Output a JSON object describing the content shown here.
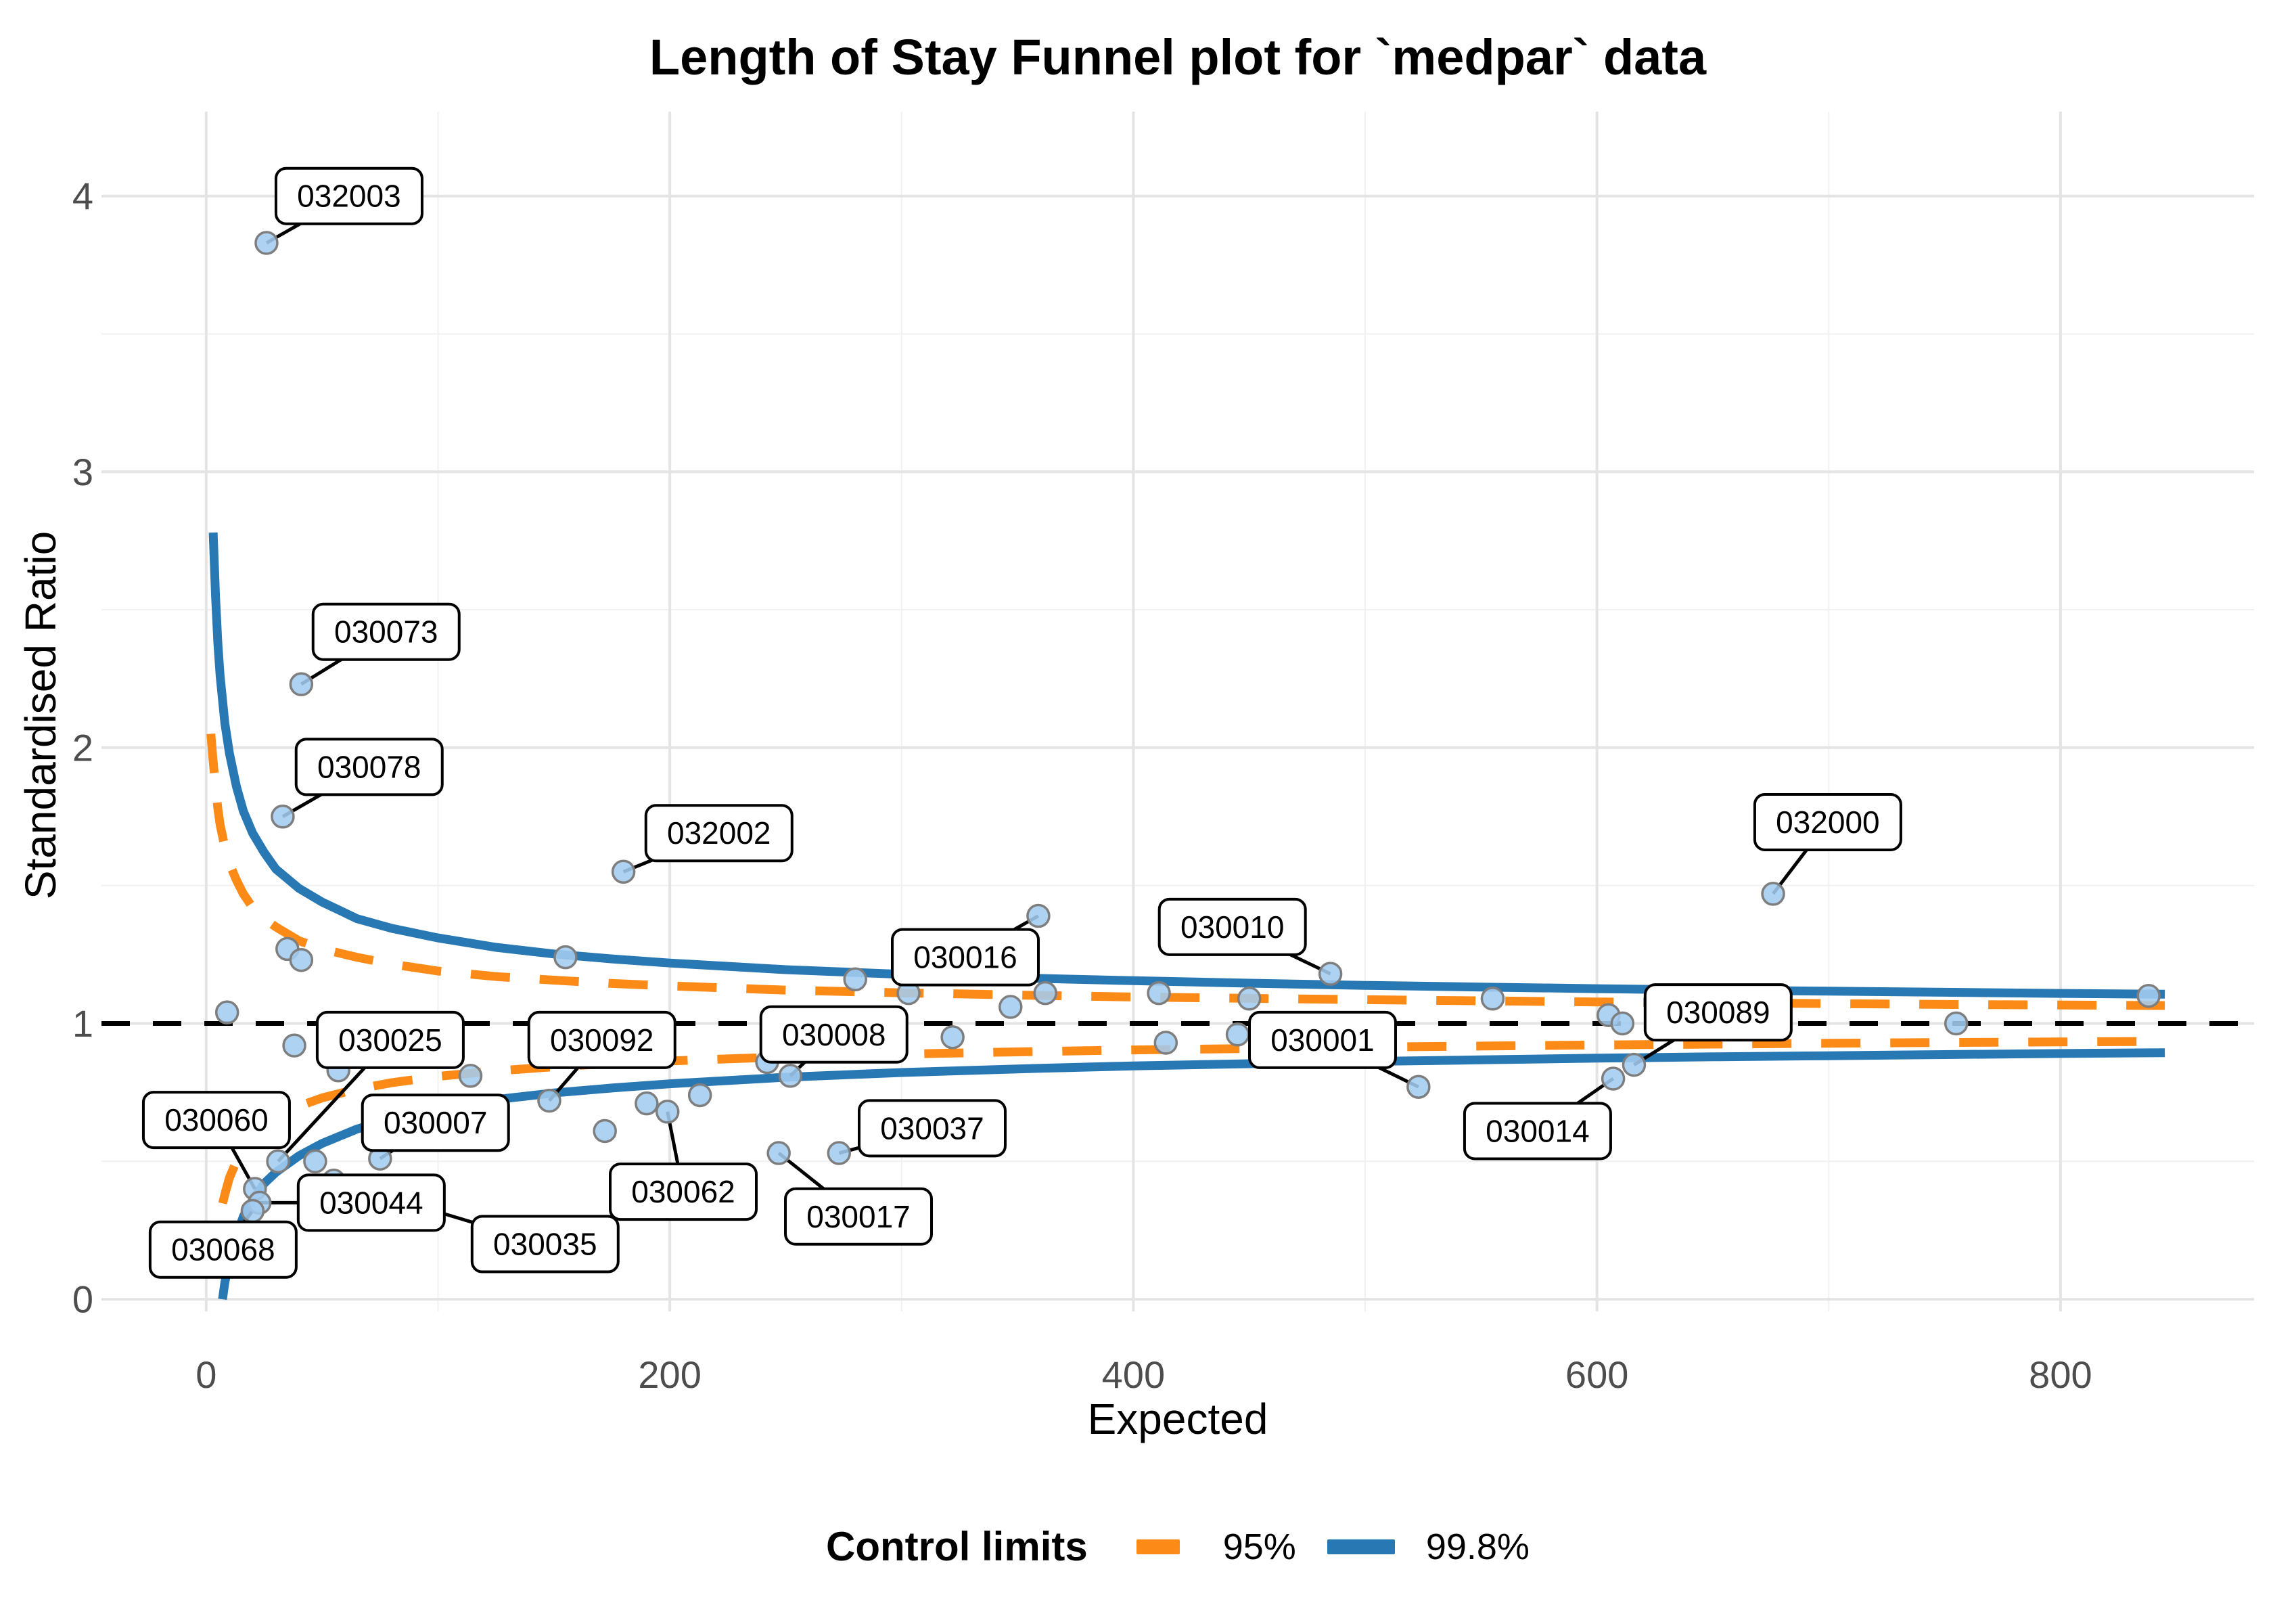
{
  "chart_data": {
    "type": "scatter",
    "title": "Length of Stay Funnel plot for `medpar` data",
    "xlabel": "Expected",
    "ylabel": "Standardised Ratio",
    "xlim": [
      -45.2,
      883.5
    ],
    "ylim": [
      -0.044,
      4.306
    ],
    "x_ticks": [
      0,
      200,
      400,
      600,
      800
    ],
    "x_minor_ticks": [
      100,
      300,
      500,
      700
    ],
    "y_ticks": [
      0,
      1,
      2,
      3,
      4
    ],
    "y_minor_ticks": [
      0.5,
      1.5,
      2.5,
      3.5
    ],
    "reference_line_y": 1,
    "grid": true,
    "legend_position": "bottom",
    "legend": {
      "title": "Control limits",
      "entries": [
        {
          "label": "95%",
          "color": "#FC8A17",
          "dashed": true
        },
        {
          "label": "99.8%",
          "color": "#2878B4",
          "dashed": false
        }
      ]
    },
    "colors": {
      "point_fill": "#A3CCF0",
      "point_stroke": "#7E7E7E",
      "limit_95": "#FC8A17",
      "limit_998": "#2878B4",
      "reference_line": "#000000",
      "grid_major": "#E4E4E4",
      "grid_minor": "#F1F1F1",
      "tick_text": "#4D4D4D",
      "label_box_fill": "#FFFFFF",
      "label_box_border": "#000000"
    },
    "labeled_points": [
      {
        "id": "032003",
        "x": 26,
        "y": 3.83,
        "label_x": 61.6,
        "label_y": 4.0
      },
      {
        "id": "030073",
        "x": 41,
        "y": 2.23,
        "label_x": 77.6,
        "label_y": 2.42
      },
      {
        "id": "030078",
        "x": 33,
        "y": 1.75,
        "label_x": 70.3,
        "label_y": 1.93
      },
      {
        "id": "032002",
        "x": 180,
        "y": 1.55,
        "label_x": 221.2,
        "label_y": 1.69
      },
      {
        "id": "032000",
        "x": 676,
        "y": 1.47,
        "label_x": 699.6,
        "label_y": 1.73
      },
      {
        "id": "030016",
        "x": 359,
        "y": 1.39,
        "label_x": 327.5,
        "label_y": 1.24
      },
      {
        "id": "030010",
        "x": 485,
        "y": 1.18,
        "label_x": 442.7,
        "label_y": 1.35
      },
      {
        "id": "030025",
        "x": 31,
        "y": 0.5,
        "label_x": 79.4,
        "label_y": 0.94
      },
      {
        "id": "030092",
        "x": 148,
        "y": 0.72,
        "label_x": 170.7,
        "label_y": 0.94
      },
      {
        "id": "030008",
        "x": 252,
        "y": 0.81,
        "label_x": 270.8,
        "label_y": 0.96
      },
      {
        "id": "030001",
        "x": 523,
        "y": 0.77,
        "label_x": 481.6,
        "label_y": 0.94
      },
      {
        "id": "030089",
        "x": 616,
        "y": 0.85,
        "label_x": 652.3,
        "label_y": 1.04
      },
      {
        "id": "030060",
        "x": 21,
        "y": 0.4,
        "label_x": 4.4,
        "label_y": 0.65
      },
      {
        "id": "030007",
        "x": 75,
        "y": 0.51,
        "label_x": 98.9,
        "label_y": 0.64
      },
      {
        "id": "030037",
        "x": 273,
        "y": 0.53,
        "label_x": 313.2,
        "label_y": 0.62
      },
      {
        "id": "030014",
        "x": 607,
        "y": 0.8,
        "label_x": 574.4,
        "label_y": 0.61
      },
      {
        "id": "030062",
        "x": 199,
        "y": 0.68,
        "label_x": 205.8,
        "label_y": 0.39
      },
      {
        "id": "030044",
        "x": 23,
        "y": 0.35,
        "label_x": 71.2,
        "label_y": 0.35
      },
      {
        "id": "030017",
        "x": 247,
        "y": 0.53,
        "label_x": 281.4,
        "label_y": 0.3
      },
      {
        "id": "030035",
        "x": 55,
        "y": 0.43,
        "label_x": 146.2,
        "label_y": 0.2
      },
      {
        "id": "030068",
        "x": 20,
        "y": 0.32,
        "label_x": 7.3,
        "label_y": 0.18
      }
    ],
    "unlabeled_points": [
      [
        35,
        1.27
      ],
      [
        41,
        1.23
      ],
      [
        155,
        1.24
      ],
      [
        9,
        1.04
      ],
      [
        38,
        0.92
      ],
      [
        47,
        0.5
      ],
      [
        57,
        0.83
      ],
      [
        114,
        0.81
      ],
      [
        172,
        0.61
      ],
      [
        190,
        0.71
      ],
      [
        213,
        0.74
      ],
      [
        242,
        0.86
      ],
      [
        280,
        1.16
      ],
      [
        303,
        1.11
      ],
      [
        322,
        0.95
      ],
      [
        347,
        1.06
      ],
      [
        362,
        1.11
      ],
      [
        411,
        1.11
      ],
      [
        414,
        0.93
      ],
      [
        445,
        0.96
      ],
      [
        450,
        1.09
      ],
      [
        555,
        1.09
      ],
      [
        605,
        1.03
      ],
      [
        611,
        1.0
      ],
      [
        755,
        1.0
      ],
      [
        838,
        1.1
      ]
    ],
    "limit_curves": {
      "p95_upper": [
        [
          2,
          2.05
        ],
        [
          3,
          1.95
        ],
        [
          4,
          1.86
        ],
        [
          5,
          1.78
        ],
        [
          6,
          1.72
        ],
        [
          8,
          1.64
        ],
        [
          10,
          1.58
        ],
        [
          13,
          1.52
        ],
        [
          16,
          1.47
        ],
        [
          20,
          1.42
        ],
        [
          25,
          1.38
        ],
        [
          30,
          1.35
        ],
        [
          40,
          1.3
        ],
        [
          50,
          1.27
        ],
        [
          65,
          1.24
        ],
        [
          80,
          1.215
        ],
        [
          100,
          1.19
        ],
        [
          125,
          1.17
        ],
        [
          150,
          1.157
        ],
        [
          175,
          1.145
        ],
        [
          200,
          1.136
        ],
        [
          250,
          1.121
        ],
        [
          300,
          1.111
        ],
        [
          350,
          1.103
        ],
        [
          400,
          1.096
        ],
        [
          450,
          1.091
        ],
        [
          500,
          1.086
        ],
        [
          550,
          1.082
        ],
        [
          600,
          1.078
        ],
        [
          650,
          1.075
        ],
        [
          700,
          1.072
        ],
        [
          750,
          1.069
        ],
        [
          800,
          1.067
        ],
        [
          845,
          1.065
        ]
      ],
      "p95_lower": [
        [
          3,
          0.1
        ],
        [
          4,
          0.18
        ],
        [
          5,
          0.25
        ],
        [
          6,
          0.31
        ],
        [
          8,
          0.38
        ],
        [
          10,
          0.44
        ],
        [
          13,
          0.5
        ],
        [
          16,
          0.545
        ],
        [
          20,
          0.585
        ],
        [
          25,
          0.625
        ],
        [
          30,
          0.655
        ],
        [
          40,
          0.7
        ],
        [
          50,
          0.73
        ],
        [
          65,
          0.762
        ],
        [
          80,
          0.785
        ],
        [
          100,
          0.808
        ],
        [
          125,
          0.828
        ],
        [
          150,
          0.843
        ],
        [
          175,
          0.855
        ],
        [
          200,
          0.864
        ],
        [
          250,
          0.879
        ],
        [
          300,
          0.889
        ],
        [
          350,
          0.897
        ],
        [
          400,
          0.904
        ],
        [
          450,
          0.909
        ],
        [
          500,
          0.914
        ],
        [
          550,
          0.918
        ],
        [
          600,
          0.922
        ],
        [
          650,
          0.925
        ],
        [
          700,
          0.928
        ],
        [
          750,
          0.931
        ],
        [
          800,
          0.933
        ],
        [
          845,
          0.935
        ]
      ],
      "p998_upper": [
        [
          3,
          2.78
        ],
        [
          4,
          2.55
        ],
        [
          5,
          2.38
        ],
        [
          6,
          2.26
        ],
        [
          8,
          2.09
        ],
        [
          10,
          1.98
        ],
        [
          13,
          1.86
        ],
        [
          16,
          1.77
        ],
        [
          20,
          1.69
        ],
        [
          25,
          1.62
        ],
        [
          30,
          1.56
        ],
        [
          40,
          1.49
        ],
        [
          50,
          1.44
        ],
        [
          65,
          1.38
        ],
        [
          80,
          1.345
        ],
        [
          100,
          1.31
        ],
        [
          125,
          1.276
        ],
        [
          150,
          1.252
        ],
        [
          175,
          1.234
        ],
        [
          200,
          1.219
        ],
        [
          250,
          1.195
        ],
        [
          300,
          1.178
        ],
        [
          350,
          1.165
        ],
        [
          400,
          1.155
        ],
        [
          450,
          1.146
        ],
        [
          500,
          1.138
        ],
        [
          550,
          1.132
        ],
        [
          600,
          1.126
        ],
        [
          650,
          1.121
        ],
        [
          700,
          1.117
        ],
        [
          750,
          1.113
        ],
        [
          800,
          1.109
        ],
        [
          845,
          1.106
        ]
      ],
      "p998_lower": [
        [
          7,
          0.0
        ],
        [
          8,
          0.06
        ],
        [
          10,
          0.14
        ],
        [
          13,
          0.23
        ],
        [
          16,
          0.3
        ],
        [
          20,
          0.36
        ],
        [
          25,
          0.42
        ],
        [
          30,
          0.46
        ],
        [
          40,
          0.52
        ],
        [
          50,
          0.565
        ],
        [
          65,
          0.617
        ],
        [
          80,
          0.655
        ],
        [
          100,
          0.69
        ],
        [
          125,
          0.724
        ],
        [
          150,
          0.748
        ],
        [
          175,
          0.766
        ],
        [
          200,
          0.781
        ],
        [
          250,
          0.805
        ],
        [
          300,
          0.822
        ],
        [
          350,
          0.835
        ],
        [
          400,
          0.846
        ],
        [
          450,
          0.854
        ],
        [
          500,
          0.862
        ],
        [
          550,
          0.868
        ],
        [
          600,
          0.874
        ],
        [
          650,
          0.879
        ],
        [
          700,
          0.883
        ],
        [
          750,
          0.887
        ],
        [
          800,
          0.891
        ],
        [
          845,
          0.894
        ]
      ]
    }
  }
}
